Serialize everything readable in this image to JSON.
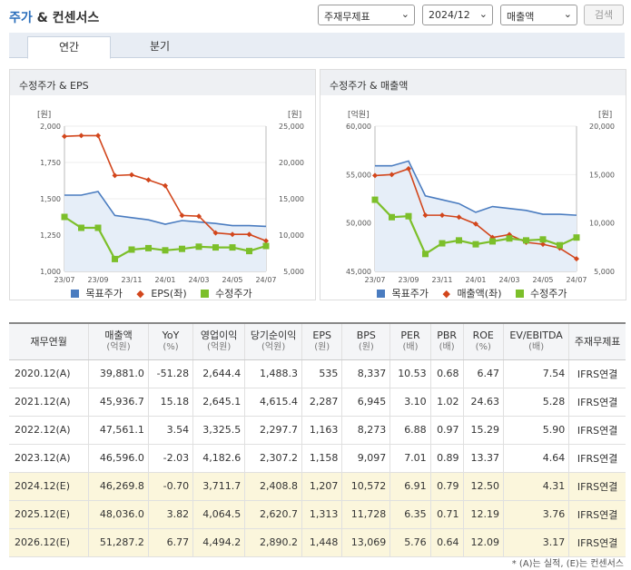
{
  "header": {
    "title_main": "주가",
    "title_rest": " & 컨센서스",
    "select_type": "주재무제표",
    "select_period": "2024/12",
    "select_metric": "매출액",
    "search_label": "검색"
  },
  "tabs": [
    "연간",
    "분기"
  ],
  "chart1": {
    "title": "수정주가 & EPS",
    "unit_left": "[원]",
    "unit_right": "[원]",
    "legend": [
      "목표주가",
      "EPS(좌)",
      "수정주가"
    ]
  },
  "chart2": {
    "title": "수정주가 & 매출액",
    "unit_left": "[억원]",
    "unit_right": "[원]",
    "legend": [
      "목표주가",
      "매출액(좌)",
      "수정주가"
    ]
  },
  "colors": {
    "target": "#4a7cc0",
    "eps": "#d2461c",
    "price": "#7cbf2a",
    "accent": "#2a6ebb"
  },
  "chart_data": [
    {
      "type": "line",
      "title": "수정주가 & EPS",
      "x": [
        "23/07",
        "23/08",
        "23/09",
        "23/10",
        "23/11",
        "23/12",
        "24/01",
        "24/02",
        "24/03",
        "24/04",
        "24/05",
        "24/06",
        "24/07"
      ],
      "x_tick_labels": [
        "23/07",
        "23/09",
        "23/11",
        "24/01",
        "24/03",
        "24/05",
        "24/07"
      ],
      "left_axis": {
        "ylim": [
          1000,
          2000
        ],
        "ticks": [
          "1,000",
          "1,250",
          "1,500",
          "1,750",
          "2,000"
        ]
      },
      "right_axis": {
        "ylim": [
          5000,
          25000
        ],
        "ticks": [
          "5,000",
          "10,000",
          "15,000",
          "20,000",
          "25,000"
        ]
      },
      "series": [
        {
          "name": "목표주가",
          "axis": "right",
          "values": [
            15500,
            15500,
            16000,
            12700,
            12400,
            12100,
            11500,
            12000,
            11800,
            11600,
            11300,
            11300,
            11200
          ]
        },
        {
          "name": "EPS(좌)",
          "axis": "left",
          "values": [
            1930,
            1935,
            1935,
            1660,
            1665,
            1630,
            1590,
            1385,
            1380,
            1265,
            1255,
            1255,
            1210
          ]
        },
        {
          "name": "수정주가",
          "axis": "right",
          "values": [
            12500,
            11000,
            11000,
            6700,
            8000,
            8200,
            7900,
            8100,
            8400,
            8300,
            8300,
            7800,
            8500
          ]
        }
      ],
      "legend": "bottom"
    },
    {
      "type": "line",
      "title": "수정주가 & 매출액",
      "x": [
        "23/07",
        "23/08",
        "23/09",
        "23/10",
        "23/11",
        "23/12",
        "24/01",
        "24/02",
        "24/03",
        "24/04",
        "24/05",
        "24/06",
        "24/07"
      ],
      "x_tick_labels": [
        "23/07",
        "23/09",
        "23/11",
        "24/01",
        "24/03",
        "24/05",
        "24/07"
      ],
      "left_axis": {
        "ylim": [
          45000,
          60000
        ],
        "ticks": [
          "45,000",
          "50,000",
          "55,000",
          "60,000"
        ]
      },
      "right_axis": {
        "ylim": [
          5000,
          20000
        ],
        "ticks": [
          "5,000",
          "10,000",
          "15,000",
          "20,000"
        ]
      },
      "series": [
        {
          "name": "목표주가",
          "axis": "right",
          "values": [
            15900,
            15900,
            16400,
            12800,
            12400,
            12000,
            11100,
            11700,
            11500,
            11300,
            10900,
            10900,
            10800
          ]
        },
        {
          "name": "매출액(좌)",
          "axis": "left",
          "values": [
            54900,
            55000,
            55600,
            50800,
            50800,
            50600,
            49900,
            48500,
            48800,
            48000,
            47800,
            47400,
            46300
          ]
        },
        {
          "name": "수정주가",
          "axis": "right",
          "values": [
            12400,
            10600,
            10700,
            6800,
            7900,
            8200,
            7800,
            8100,
            8400,
            8200,
            8300,
            7700,
            8500
          ]
        }
      ],
      "legend": "bottom"
    }
  ],
  "table": {
    "headers": [
      [
        "재무연월",
        ""
      ],
      [
        "매출액",
        "(억원)"
      ],
      [
        "YoY",
        "(%)"
      ],
      [
        "영업이익",
        "(억원)"
      ],
      [
        "당기순이익",
        "(억원)"
      ],
      [
        "EPS",
        "(원)"
      ],
      [
        "BPS",
        "(원)"
      ],
      [
        "PER",
        "(배)"
      ],
      [
        "PBR",
        "(배)"
      ],
      [
        "ROE",
        "(%)"
      ],
      [
        "EV/EBITDA",
        "(배)"
      ],
      [
        "주재무제표",
        ""
      ]
    ],
    "rows": [
      [
        "2020.12(A)",
        "39,881.0",
        "-51.28",
        "2,644.4",
        "1,488.3",
        "535",
        "8,337",
        "10.53",
        "0.68",
        "6.47",
        "7.54",
        "IFRS연결"
      ],
      [
        "2021.12(A)",
        "45,936.7",
        "15.18",
        "2,645.1",
        "4,615.4",
        "2,287",
        "6,945",
        "3.10",
        "1.02",
        "24.63",
        "5.28",
        "IFRS연결"
      ],
      [
        "2022.12(A)",
        "47,561.1",
        "3.54",
        "3,325.5",
        "2,297.7",
        "1,163",
        "8,273",
        "6.88",
        "0.97",
        "15.29",
        "5.90",
        "IFRS연결"
      ],
      [
        "2023.12(A)",
        "46,596.0",
        "-2.03",
        "4,182.6",
        "2,307.2",
        "1,158",
        "9,097",
        "7.01",
        "0.89",
        "13.37",
        "4.64",
        "IFRS연결"
      ],
      [
        "2024.12(E)",
        "46,269.8",
        "-0.70",
        "3,711.7",
        "2,408.8",
        "1,207",
        "10,572",
        "6.91",
        "0.79",
        "12.50",
        "4.31",
        "IFRS연결"
      ],
      [
        "2025.12(E)",
        "48,036.0",
        "3.82",
        "4,064.5",
        "2,620.7",
        "1,313",
        "11,728",
        "6.35",
        "0.71",
        "12.19",
        "3.76",
        "IFRS연결"
      ],
      [
        "2026.12(E)",
        "51,287.2",
        "6.77",
        "4,494.2",
        "2,890.2",
        "1,448",
        "13,069",
        "5.76",
        "0.64",
        "12.09",
        "3.17",
        "IFRS연결"
      ]
    ],
    "estimate_from_row": 4
  },
  "footnote": "* (A)는 실적, (E)는 컨센서스"
}
